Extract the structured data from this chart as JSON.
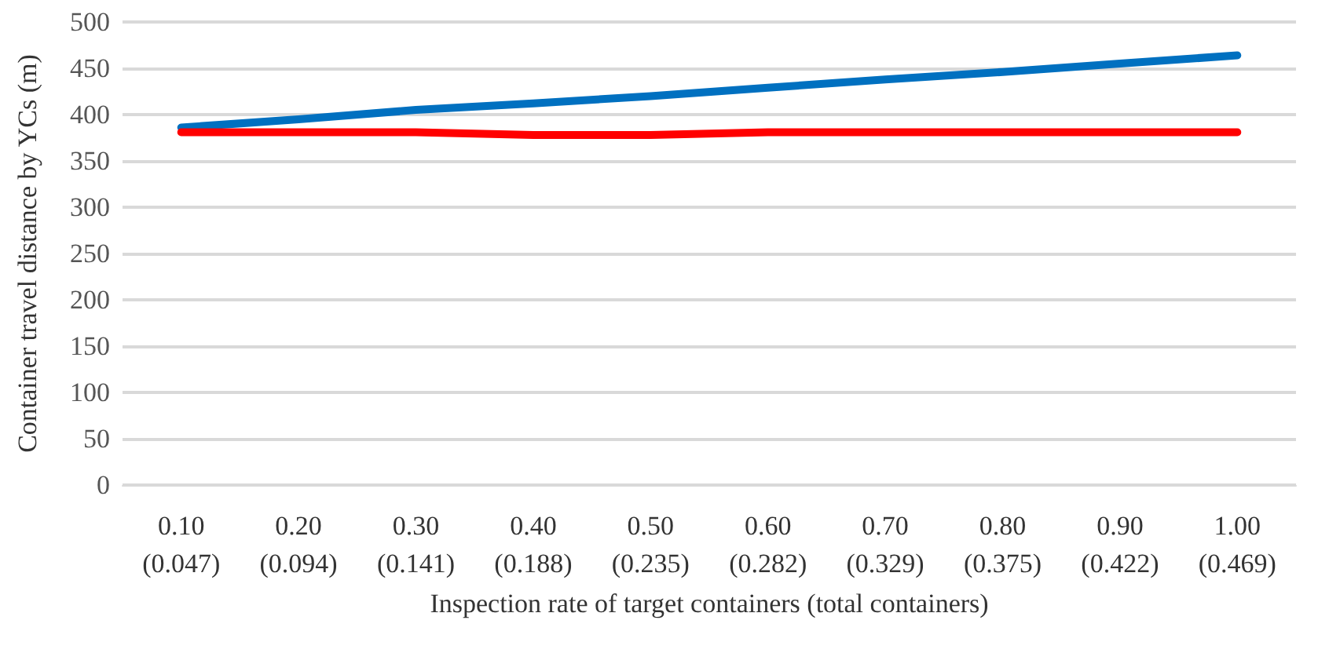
{
  "chart_data": {
    "type": "line",
    "xlabel": "Inspection rate of target containers (total containers)",
    "ylabel": "Container travel distance by YCs (m)",
    "categories": [
      "0.10\n(0.047)",
      "0.20\n(0.094)",
      "0.30\n(0.141)",
      "0.40\n(0.188)",
      "0.50\n(0.235)",
      "0.60\n(0.282)",
      "0.70\n(0.329)",
      "0.80\n(0.375)",
      "0.90\n(0.422)",
      "1.00\n(0.469)"
    ],
    "series": [
      {
        "color": "#0070c0",
        "values": [
          386,
          395,
          405,
          412,
          420,
          429,
          438,
          446,
          455,
          464
        ]
      },
      {
        "color": "#ff0000",
        "values": [
          381,
          381,
          381,
          378,
          378,
          381,
          381,
          381,
          381,
          381
        ]
      }
    ],
    "ylim": [
      0,
      500
    ],
    "yticks": [
      0,
      50,
      100,
      150,
      200,
      250,
      300,
      350,
      400,
      450,
      500
    ],
    "grid": "y",
    "marker": "none",
    "line_style": "solid"
  }
}
